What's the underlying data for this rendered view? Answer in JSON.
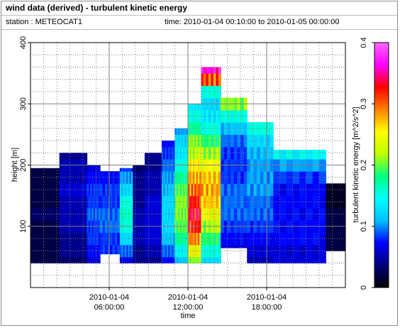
{
  "header": {
    "title": "wind data (derived) - turbulent kinetic energy",
    "station": "station : METEOCAT1",
    "time_range": "time: 2010-01-04 00:10:00 to 2010-01-05 00:00:00"
  },
  "colors": {
    "background": "#ffffff",
    "frame": "#8c8c8c",
    "grid": "#7f7f7f",
    "colormap": [
      "#000000",
      "#00007a",
      "#0000ff",
      "#00bfff",
      "#00ffff",
      "#00ff7f",
      "#bfff00",
      "#ffff00",
      "#ff8000",
      "#ff0000",
      "#ff00ff",
      "#ff66ff"
    ]
  },
  "chart_data": {
    "type": "heatmap",
    "title": "wind data (derived) - turbulent kinetic energy",
    "xlabel": "time",
    "ylabel": "height [m]",
    "colorbar_label": "turbulent kinetic energy [m^2/s^2]",
    "x_range": [
      0,
      24
    ],
    "y_range": [
      0,
      400
    ],
    "color_range": [
      0,
      0.4
    ],
    "grid": true,
    "x_ticks": [
      {
        "x": 6,
        "date": "2010-01-04",
        "time": "06:00:00"
      },
      {
        "x": 12,
        "date": "2010-01-04",
        "time": "12:00:00"
      },
      {
        "x": 18,
        "date": "2010-01-04",
        "time": "18:00:00"
      }
    ],
    "y_ticks": [
      100,
      200,
      300,
      400
    ],
    "colorbar_ticks": [
      {
        "value": 0,
        "label": "0"
      },
      {
        "value": 0.1,
        "label": "0.1"
      },
      {
        "value": 0.2,
        "label": "0.2"
      },
      {
        "value": 0.3,
        "label": "0.3"
      },
      {
        "value": 0.4,
        "label": "0.4"
      }
    ],
    "height_levels": [
      40,
      60,
      80,
      100,
      120,
      140,
      160,
      180,
      200,
      220,
      240,
      260,
      280,
      300,
      320,
      340,
      360
    ],
    "columns": [
      {
        "t": 0.0,
        "bottom": 40,
        "top": 195,
        "tke": [
          0.02,
          0.02,
          0.02,
          0.02,
          0.03,
          0.02,
          0.02,
          0.02,
          0.02
        ]
      },
      {
        "t": 2.2,
        "bottom": 40,
        "top": 220,
        "tke": [
          0.03,
          0.04,
          0.04,
          0.05,
          0.05,
          0.05,
          0.06,
          0.05,
          0.05,
          0.04
        ]
      },
      {
        "t": 4.3,
        "bottom": 40,
        "top": 200,
        "tke": [
          0.06,
          0.07,
          0.08,
          0.08,
          0.09,
          0.08,
          0.08,
          0.07,
          0.06
        ]
      },
      {
        "t": 5.3,
        "bottom": 55,
        "top": 195,
        "tke": [
          0.07,
          0.08,
          0.08,
          0.09,
          0.09,
          0.08,
          0.08,
          0.07
        ]
      },
      {
        "t": 6.8,
        "bottom": 40,
        "top": 195,
        "tke": [
          0.06,
          0.09,
          0.12,
          0.15,
          0.16,
          0.15,
          0.12,
          0.1,
          0.08
        ]
      },
      {
        "t": 7.8,
        "bottom": 40,
        "top": 200,
        "tke": [
          0.04,
          0.04,
          0.05,
          0.05,
          0.05,
          0.04,
          0.04,
          0.04,
          0.03
        ]
      },
      {
        "t": 8.7,
        "bottom": 40,
        "top": 220,
        "tke": [
          0.04,
          0.05,
          0.06,
          0.06,
          0.06,
          0.06,
          0.05,
          0.05,
          0.04,
          0.04
        ]
      },
      {
        "t": 10.0,
        "bottom": 40,
        "top": 240,
        "tke": [
          0.07,
          0.09,
          0.11,
          0.12,
          0.12,
          0.12,
          0.11,
          0.1,
          0.09,
          0.08,
          0.07
        ]
      },
      {
        "t": 11.0,
        "bottom": 40,
        "top": 260,
        "tke": [
          0.11,
          0.14,
          0.17,
          0.19,
          0.2,
          0.2,
          0.19,
          0.17,
          0.15,
          0.13,
          0.12,
          0.1
        ]
      },
      {
        "t": 12.0,
        "bottom": 40,
        "top": 300,
        "tke": [
          0.2,
          0.24,
          0.28,
          0.31,
          0.32,
          0.31,
          0.29,
          0.27,
          0.25,
          0.22,
          0.2,
          0.17,
          0.15,
          0.13
        ]
      },
      {
        "t": 13.0,
        "bottom": 40,
        "top": 360,
        "tke": [
          0.12,
          0.15,
          0.18,
          0.21,
          0.24,
          0.26,
          0.27,
          0.26,
          0.24,
          0.21,
          0.18,
          0.15,
          0.13,
          0.12,
          0.15,
          0.3,
          0.35
        ]
      },
      {
        "t": 14.5,
        "bottom": 65,
        "top": 350,
        "tke": [
          0.05,
          0.06,
          0.07,
          0.08,
          0.09,
          0.09,
          0.09,
          0.08,
          0.08,
          0.08,
          0.09,
          0.11,
          0.15,
          0.2
        ]
      },
      {
        "t": 16.5,
        "bottom": 40,
        "top": 280,
        "tke": [
          0.05,
          0.06,
          0.07,
          0.08,
          0.09,
          0.09,
          0.1,
          0.1,
          0.1,
          0.11,
          0.12,
          0.15
        ]
      },
      {
        "t": 18.5,
        "bottom": 40,
        "top": 225,
        "tke": [
          0.06,
          0.06,
          0.07,
          0.07,
          0.07,
          0.07,
          0.07,
          0.08,
          0.1,
          0.14
        ]
      },
      {
        "t": 22.5,
        "bottom": 60,
        "top": 190,
        "tke": [
          0.02,
          0.02,
          0.02,
          0.02,
          0.02,
          0.01,
          0.01
        ]
      }
    ]
  }
}
